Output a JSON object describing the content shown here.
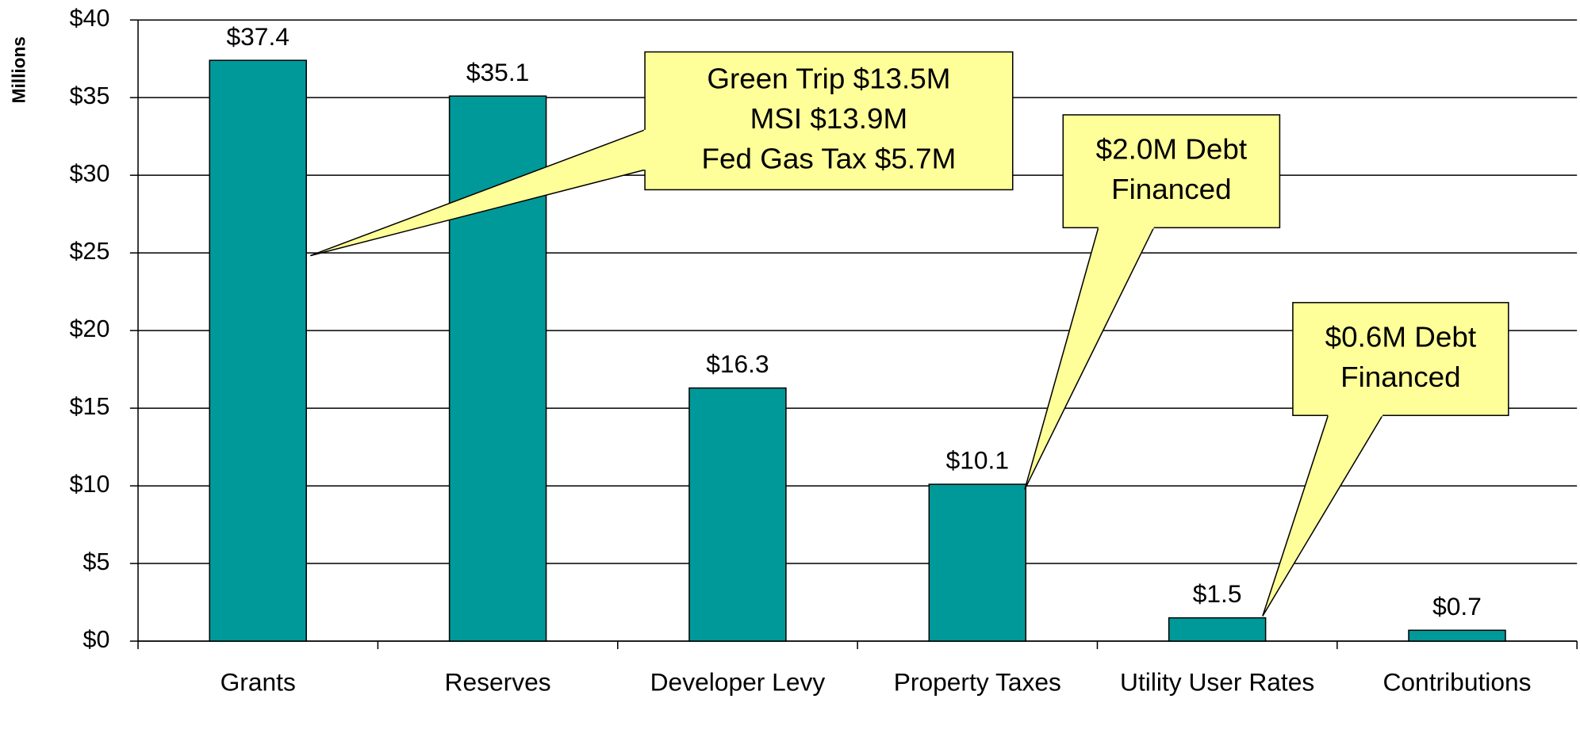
{
  "chart_data": {
    "type": "bar",
    "y_axis_label": "Millions",
    "categories": [
      "Grants",
      "Reserves",
      "Developer Levy",
      "Property Taxes",
      "Utility User Rates",
      "Contributions"
    ],
    "values": [
      37.4,
      35.1,
      16.3,
      10.1,
      1.5,
      0.7
    ],
    "value_labels": [
      "$37.4",
      "$35.1",
      "$16.3",
      "$10.1",
      "$1.5",
      "$0.7"
    ],
    "color": "#009999",
    "ylim": [
      0,
      40
    ],
    "yticks": [
      {
        "value": 0,
        "label": "$0"
      },
      {
        "value": 5,
        "label": "$5"
      },
      {
        "value": 10,
        "label": "$10"
      },
      {
        "value": 15,
        "label": "$15"
      },
      {
        "value": 20,
        "label": "$20"
      },
      {
        "value": 25,
        "label": "$25"
      },
      {
        "value": 30,
        "label": "$30"
      },
      {
        "value": 35,
        "label": "$35"
      },
      {
        "value": 40,
        "label": "$40"
      }
    ],
    "grid": true,
    "annotations": [
      {
        "lines": [
          "Green Trip $13.5M",
          "MSI $13.9M",
          "Fed Gas Tax $5.7M"
        ]
      },
      {
        "lines": [
          "$2.0M Debt",
          "Financed"
        ]
      },
      {
        "lines": [
          "$0.6M Debt",
          "Financed"
        ]
      }
    ]
  }
}
